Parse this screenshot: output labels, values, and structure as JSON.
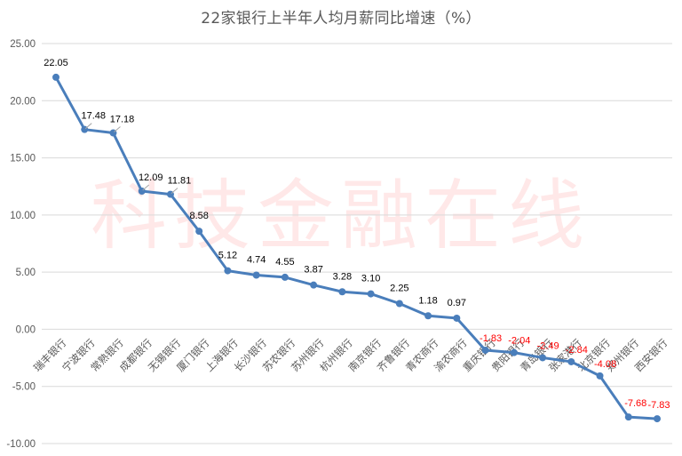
{
  "chart_data": {
    "type": "line",
    "title": "22家银行上半年人均月薪同比增速（%）",
    "xlabel": "",
    "ylabel": "",
    "ylim": [
      -10,
      25
    ],
    "yticks": [
      "25.00",
      "20.00",
      "15.00",
      "10.00",
      "5.00",
      "0.00",
      "-5.00",
      "-10.00"
    ],
    "ytick_values": [
      25,
      20,
      15,
      10,
      5,
      0,
      -5,
      -10
    ],
    "grid": true,
    "legend": "none",
    "watermark": "科技金融在线",
    "categories": [
      "瑞丰银行",
      "宁波银行",
      "常熟银行",
      "成都银行",
      "无锡银行",
      "厦门银行",
      "上海银行",
      "长沙银行",
      "苏农银行",
      "苏州银行",
      "杭州银行",
      "南京银行",
      "齐鲁银行",
      "青农商行",
      "渝农商行",
      "重庆银行",
      "贵阳银行",
      "青岛银行",
      "张家港行",
      "北京银行",
      "郑州银行",
      "西安银行"
    ],
    "series": [
      {
        "name": "人均月薪同比增速",
        "color": "#4a7ebb",
        "values": [
          22.05,
          17.48,
          17.18,
          12.09,
          11.81,
          8.58,
          5.12,
          4.74,
          4.55,
          3.87,
          3.28,
          3.1,
          2.25,
          1.18,
          0.97,
          -1.83,
          -2.04,
          -2.49,
          -2.84,
          -4.08,
          -7.68,
          -7.83
        ],
        "labels": [
          "22.05",
          "17.48",
          "17.18",
          "12.09",
          "11.81",
          "8.58",
          "5.12",
          "4.74",
          "4.55",
          "3.87",
          "3.28",
          "3.10",
          "2.25",
          "1.18",
          "0.97",
          "-1.83",
          "-2.04",
          "-2.49",
          "-2.84",
          "-4.08",
          "-7.68",
          "-7.83"
        ]
      }
    ],
    "colors": {
      "line": "#4a7ebb",
      "positive_label": "#000000",
      "negative_label": "#ff0000",
      "grid": "#d9d9d9",
      "axis_text": "#595959"
    }
  }
}
